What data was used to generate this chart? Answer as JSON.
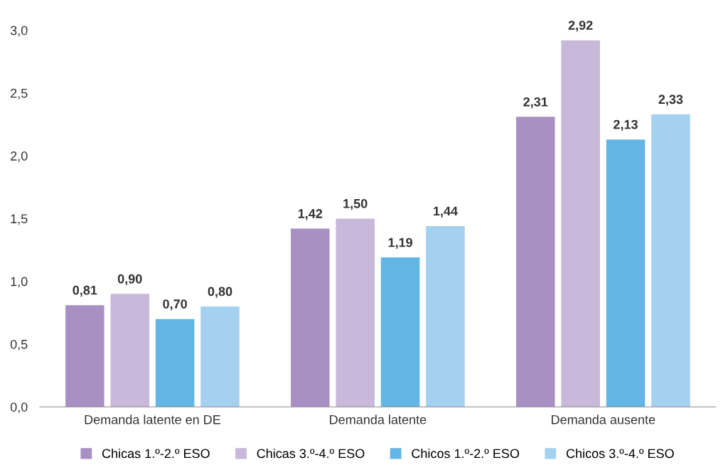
{
  "chart_data": {
    "type": "bar",
    "categories": [
      "Demanda latente en DE",
      "Demanda latente",
      "Demanda ausente"
    ],
    "series": [
      {
        "name": "Chicas 1.º-2.º ESO",
        "color": "#a990c3",
        "values": [
          0.81,
          1.42,
          2.31
        ],
        "value_labels": [
          "0,81",
          "1,42",
          "2,31"
        ]
      },
      {
        "name": "Chicas 3.º-4.º ESO",
        "color": "#c8b8da",
        "values": [
          0.9,
          1.5,
          2.92
        ],
        "value_labels": [
          "0,90",
          "1,50",
          "2,92"
        ]
      },
      {
        "name": "Chicos 1.º-2.º ESO",
        "color": "#63b5e5",
        "values": [
          0.7,
          1.19,
          2.13
        ],
        "value_labels": [
          "0,70",
          "1,19",
          "2,13"
        ]
      },
      {
        "name": "Chicos 3.º-4.º ESO",
        "color": "#a5d1f0",
        "values": [
          0.8,
          1.44,
          2.33
        ],
        "value_labels": [
          "0,80",
          "1,44",
          "2,33"
        ]
      }
    ],
    "ylim": [
      0,
      3.0
    ],
    "yticks": [
      {
        "value": 0,
        "label": "0,0"
      },
      {
        "value": 0.5,
        "label": "0,5"
      },
      {
        "value": 1.0,
        "label": "1,0"
      },
      {
        "value": 1.5,
        "label": "1,5"
      },
      {
        "value": 2.0,
        "label": "2,0"
      },
      {
        "value": 2.5,
        "label": "2,5"
      },
      {
        "value": 3.0,
        "label": "3,0"
      }
    ],
    "grid": false,
    "legend": "bottom"
  }
}
